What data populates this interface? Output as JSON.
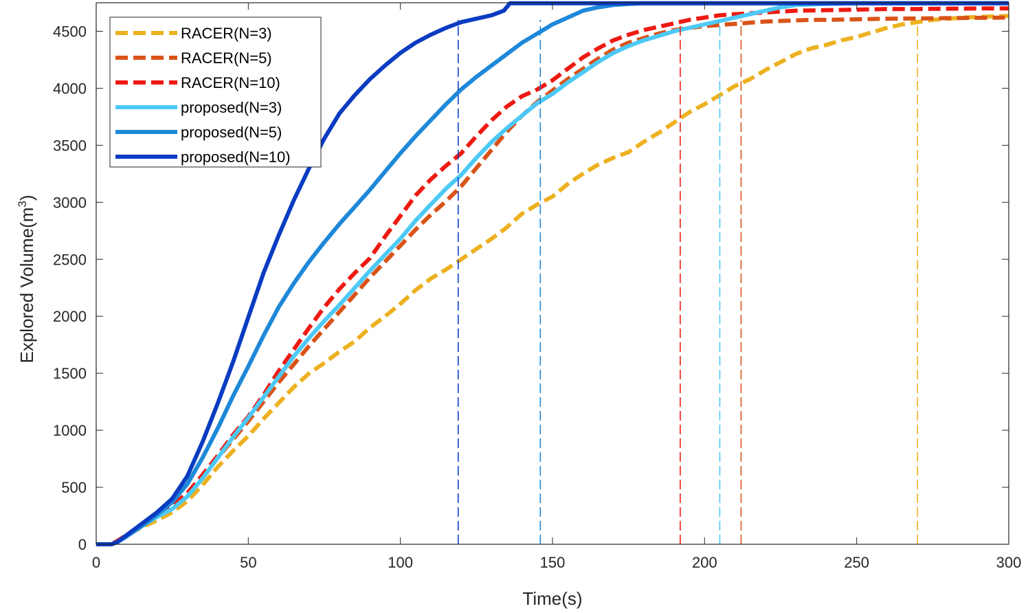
{
  "chart_data": {
    "type": "line",
    "title": "",
    "xlabel": "Time(s)",
    "ylabel_main": "Explored Volume(m",
    "ylabel_sup": "3",
    "ylabel_end": ")",
    "xlim": [
      0,
      300
    ],
    "ylim": [
      0,
      4750
    ],
    "xticks": [
      0,
      50,
      100,
      150,
      200,
      250,
      300
    ],
    "yticks": [
      0,
      500,
      1000,
      1500,
      2000,
      2500,
      3000,
      3500,
      4000,
      4500
    ],
    "grid": false,
    "legend_position": "top-left",
    "series": [
      {
        "name": "RACER(N=3)",
        "color": "#EDB120",
        "dash": "dashed",
        "finish_time": 270,
        "x": [
          0,
          5,
          7,
          10,
          15,
          20,
          25,
          30,
          35,
          40,
          45,
          50,
          55,
          60,
          65,
          70,
          75,
          80,
          85,
          90,
          95,
          100,
          105,
          110,
          115,
          120,
          125,
          130,
          135,
          140,
          145,
          150,
          155,
          160,
          165,
          170,
          175,
          180,
          185,
          190,
          195,
          200,
          205,
          210,
          215,
          220,
          225,
          230,
          235,
          240,
          245,
          250,
          255,
          260,
          265,
          270,
          275,
          280,
          285,
          290,
          295,
          300
        ],
        "y": [
          0,
          0,
          30,
          80,
          150,
          210,
          280,
          380,
          520,
          680,
          820,
          950,
          1100,
          1240,
          1380,
          1500,
          1590,
          1690,
          1780,
          1900,
          2000,
          2110,
          2230,
          2330,
          2410,
          2500,
          2590,
          2680,
          2780,
          2900,
          2980,
          3050,
          3160,
          3250,
          3330,
          3390,
          3440,
          3530,
          3610,
          3700,
          3790,
          3860,
          3940,
          4020,
          4080,
          4160,
          4230,
          4300,
          4350,
          4380,
          4420,
          4450,
          4490,
          4530,
          4560,
          4580,
          4600,
          4610,
          4620,
          4625,
          4630,
          4635
        ]
      },
      {
        "name": "RACER(N=5)",
        "color": "#D95319",
        "dash": "dashed",
        "finish_time": 212,
        "x": [
          0,
          5,
          7,
          10,
          15,
          20,
          25,
          30,
          35,
          40,
          45,
          50,
          55,
          60,
          65,
          70,
          75,
          80,
          85,
          90,
          95,
          100,
          105,
          110,
          115,
          120,
          125,
          130,
          135,
          140,
          145,
          150,
          155,
          160,
          165,
          170,
          175,
          180,
          185,
          190,
          195,
          200,
          205,
          210,
          215,
          220,
          225,
          230,
          235,
          240,
          250,
          260,
          270,
          280,
          290,
          300
        ],
        "y": [
          0,
          0,
          30,
          80,
          170,
          250,
          340,
          450,
          600,
          760,
          920,
          1080,
          1250,
          1420,
          1580,
          1740,
          1890,
          2040,
          2190,
          2340,
          2480,
          2620,
          2760,
          2890,
          3010,
          3140,
          3300,
          3460,
          3620,
          3760,
          3880,
          3980,
          4080,
          4170,
          4260,
          4340,
          4400,
          4440,
          4480,
          4510,
          4530,
          4545,
          4555,
          4565,
          4575,
          4585,
          4590,
          4595,
          4600,
          4600,
          4605,
          4610,
          4612,
          4615,
          4618,
          4620
        ]
      },
      {
        "name": "RACER(N=10)",
        "color": "#EE1A12",
        "dash": "dashed",
        "finish_time": 192,
        "x": [
          0,
          5,
          7,
          10,
          15,
          20,
          25,
          30,
          35,
          40,
          45,
          50,
          55,
          60,
          65,
          70,
          75,
          80,
          85,
          90,
          95,
          100,
          105,
          110,
          115,
          120,
          125,
          130,
          135,
          140,
          145,
          150,
          155,
          160,
          165,
          170,
          175,
          180,
          185,
          190,
          195,
          200,
          205,
          210,
          220,
          230,
          240,
          250,
          260,
          270,
          280,
          290,
          300
        ],
        "y": [
          0,
          0,
          30,
          80,
          170,
          250,
          340,
          450,
          610,
          780,
          960,
          1120,
          1310,
          1520,
          1710,
          1900,
          2080,
          2240,
          2380,
          2510,
          2700,
          2880,
          3060,
          3200,
          3320,
          3430,
          3580,
          3720,
          3840,
          3930,
          3990,
          4070,
          4170,
          4270,
          4350,
          4420,
          4470,
          4510,
          4540,
          4570,
          4600,
          4620,
          4640,
          4650,
          4665,
          4680,
          4685,
          4690,
          4695,
          4695,
          4698,
          4700,
          4700
        ]
      },
      {
        "name": "proposed(N=3)",
        "color": "#4DC9F6",
        "dash": "solid",
        "finish_time": 205,
        "x": [
          0,
          5,
          7,
          10,
          15,
          20,
          25,
          30,
          35,
          40,
          45,
          50,
          55,
          60,
          65,
          70,
          75,
          80,
          85,
          90,
          95,
          100,
          105,
          110,
          115,
          120,
          125,
          130,
          135,
          140,
          145,
          150,
          155,
          160,
          165,
          170,
          175,
          180,
          185,
          190,
          195,
          200,
          205,
          210,
          215,
          220,
          225,
          230,
          240,
          250,
          260,
          270,
          280,
          290,
          300
        ],
        "y": [
          0,
          0,
          20,
          70,
          160,
          240,
          310,
          420,
          580,
          760,
          940,
          1110,
          1290,
          1470,
          1650,
          1810,
          1960,
          2100,
          2250,
          2400,
          2540,
          2680,
          2840,
          2980,
          3120,
          3240,
          3390,
          3530,
          3650,
          3760,
          3870,
          3950,
          4050,
          4140,
          4230,
          4310,
          4370,
          4420,
          4460,
          4500,
          4530,
          4560,
          4590,
          4620,
          4650,
          4680,
          4710,
          4730,
          4740,
          4745,
          4745,
          4745,
          4745,
          4745,
          4745
        ]
      },
      {
        "name": "proposed(N=5)",
        "color": "#1E88D9",
        "dash": "solid",
        "finish_time": 146,
        "x": [
          0,
          5,
          7,
          10,
          15,
          20,
          25,
          30,
          35,
          40,
          45,
          50,
          55,
          60,
          65,
          70,
          75,
          80,
          85,
          90,
          95,
          100,
          105,
          110,
          115,
          120,
          125,
          130,
          135,
          140,
          145,
          150,
          155,
          160,
          165,
          170,
          175,
          180,
          190,
          200,
          220,
          240,
          260,
          280,
          300
        ],
        "y": [
          0,
          0,
          20,
          70,
          160,
          260,
          370,
          530,
          760,
          1020,
          1300,
          1560,
          1830,
          2080,
          2290,
          2480,
          2650,
          2810,
          2960,
          3110,
          3270,
          3430,
          3580,
          3720,
          3860,
          3990,
          4100,
          4200,
          4300,
          4400,
          4480,
          4560,
          4620,
          4680,
          4710,
          4730,
          4740,
          4745,
          4745,
          4745,
          4745,
          4745,
          4745,
          4745,
          4745
        ]
      },
      {
        "name": "proposed(N=10)",
        "color": "#0A3CC2",
        "dash": "solid",
        "finish_time": 119,
        "x": [
          0,
          5,
          7,
          10,
          15,
          20,
          25,
          30,
          35,
          40,
          45,
          50,
          55,
          60,
          65,
          70,
          75,
          80,
          85,
          90,
          95,
          100,
          105,
          110,
          115,
          120,
          125,
          130,
          134,
          136,
          140,
          150,
          160,
          180,
          200,
          220,
          240,
          260,
          280,
          300
        ],
        "y": [
          0,
          0,
          20,
          80,
          180,
          280,
          400,
          600,
          900,
          1240,
          1600,
          1990,
          2380,
          2710,
          3020,
          3300,
          3560,
          3780,
          3940,
          4080,
          4200,
          4310,
          4400,
          4470,
          4530,
          4580,
          4610,
          4640,
          4680,
          4745,
          4745,
          4745,
          4745,
          4745,
          4745,
          4745,
          4745,
          4745,
          4745,
          4745
        ]
      }
    ]
  }
}
